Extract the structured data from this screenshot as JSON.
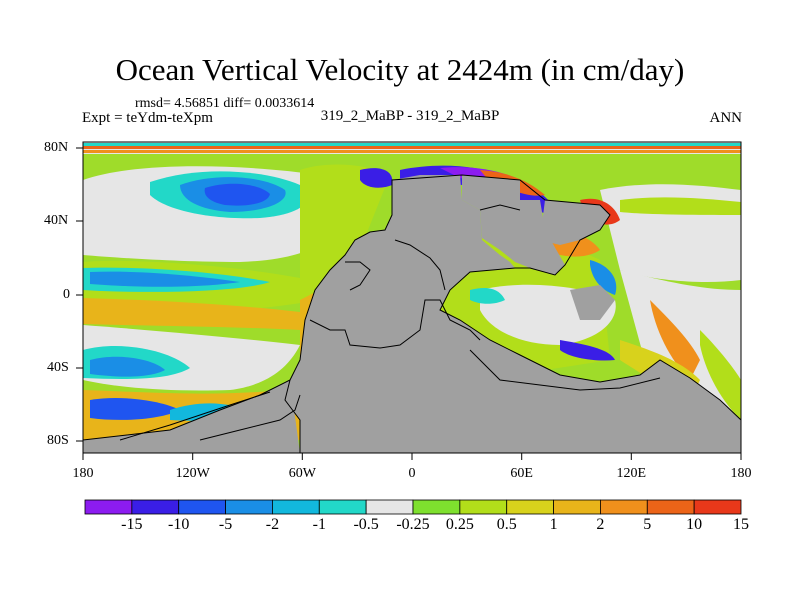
{
  "plot": {
    "title": "Ocean Vertical Velocity at 2424m (in cm/day)",
    "stats": "rmsd= 4.56851 diff= 0.0033614",
    "expt": "Expt = teYdm-teXpm",
    "center_label": "319_2_MaBP - 319_2_MaBP",
    "season": "ANN"
  },
  "axes": {
    "x_ticks": [
      "180",
      "120W",
      "60W",
      "0",
      "60E",
      "120E",
      "180"
    ],
    "y_ticks": [
      "80N",
      "40N",
      "0",
      "40S",
      "80S"
    ]
  },
  "colorbar": {
    "labels": [
      "-15",
      "-10",
      "-5",
      "-2",
      "-1",
      "-0.5",
      "-0.25",
      "0.25",
      "0.5",
      "1",
      "2",
      "5",
      "10",
      "15"
    ],
    "colors": [
      "#8c1cf0",
      "#3a1ee6",
      "#1f55f0",
      "#1a8ee6",
      "#12b8dd",
      "#22d8c8",
      "#e6e6e6",
      "#7ee02e",
      "#b2de1a",
      "#d8d21c",
      "#e8b41a",
      "#f0901c",
      "#ec6418",
      "#e8381a"
    ]
  },
  "colors": {
    "land": "#a0a0a0",
    "neutral": "#e6e6e6"
  }
}
